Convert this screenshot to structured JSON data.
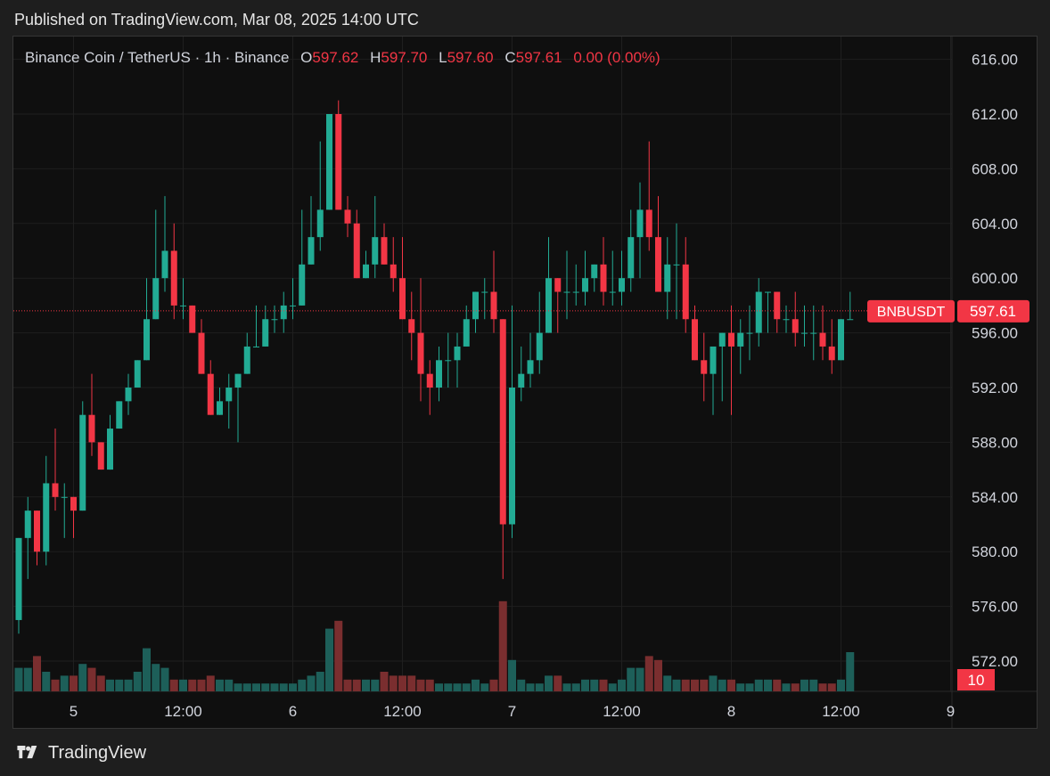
{
  "header": {
    "published": "Published on TradingView.com, Mar 08, 2025 14:00 UTC"
  },
  "legend": {
    "symbol": "Binance Coin / TetherUS · 1h · Binance",
    "o_label": "O",
    "o_value": "597.62",
    "h_label": "H",
    "h_value": "597.70",
    "l_label": "L",
    "l_value": "597.60",
    "c_label": "C",
    "c_value": "597.61",
    "change": "0.00 (0.00%)"
  },
  "price_tag": {
    "symbol": "BNBUSDT",
    "value": "597.61"
  },
  "volume_tag": {
    "value": "10"
  },
  "footer": {
    "brand": "TradingView"
  },
  "colors": {
    "up": "#22ab94",
    "down": "#f23645",
    "vol_up": "#1d5f59",
    "vol_down": "#7a2e2f",
    "background": "#0f0f0f",
    "grid": "#1f1f1f",
    "axis_text": "#d1d4dc"
  },
  "chart_data": {
    "type": "candlestick",
    "ylim": [
      570,
      617
    ],
    "yticks": [
      "616.00",
      "612.00",
      "608.00",
      "604.00",
      "600.00",
      "596.00",
      "592.00",
      "588.00",
      "584.00",
      "580.00",
      "576.00",
      "572.00"
    ],
    "xticks": [
      {
        "label": "5",
        "index": 6
      },
      {
        "label": "12:00",
        "index": 18
      },
      {
        "label": "6",
        "index": 30
      },
      {
        "label": "12:00",
        "index": 42
      },
      {
        "label": "7",
        "index": 54
      },
      {
        "label": "12:00",
        "index": 66
      },
      {
        "label": "8",
        "index": 78
      },
      {
        "label": "12:00",
        "index": 90
      },
      {
        "label": "9",
        "index": 102
      }
    ],
    "last_price": 597.61,
    "candles": [
      [
        575,
        581,
        574,
        581,
        6
      ],
      [
        581,
        584,
        578,
        583,
        6
      ],
      [
        583,
        583,
        579,
        580,
        9
      ],
      [
        580,
        587,
        579,
        585,
        5
      ],
      [
        585,
        589,
        583,
        584,
        3
      ],
      [
        584,
        585,
        581,
        584,
        4
      ],
      [
        584,
        584,
        581,
        583,
        4
      ],
      [
        583,
        591,
        583,
        590,
        7
      ],
      [
        590,
        593,
        587,
        588,
        6
      ],
      [
        588,
        588,
        586,
        586,
        4
      ],
      [
        586,
        590,
        586,
        589,
        3
      ],
      [
        589,
        591,
        589,
        591,
        3
      ],
      [
        591,
        593,
        590,
        592,
        3
      ],
      [
        592,
        594,
        592,
        594,
        5
      ],
      [
        594,
        600,
        594,
        597,
        11
      ],
      [
        597,
        605,
        597,
        600,
        7
      ],
      [
        600,
        606,
        599,
        602,
        6
      ],
      [
        602,
        604,
        597,
        598,
        3
      ],
      [
        598,
        600,
        597,
        598,
        3
      ],
      [
        598,
        598,
        596,
        596,
        3
      ],
      [
        596,
        597,
        593,
        593,
        3
      ],
      [
        593,
        594,
        590,
        590,
        4
      ],
      [
        590,
        592,
        590,
        591,
        3
      ],
      [
        591,
        593,
        589,
        592,
        3
      ],
      [
        592,
        593,
        588,
        593,
        2
      ],
      [
        593,
        596,
        593,
        595,
        2
      ],
      [
        595,
        598,
        595,
        595,
        2
      ],
      [
        595,
        598,
        595,
        597,
        2
      ],
      [
        597,
        598,
        596,
        597,
        2
      ],
      [
        597,
        599,
        596,
        598,
        2
      ],
      [
        598,
        600,
        597,
        598,
        2
      ],
      [
        598,
        605,
        598,
        601,
        3
      ],
      [
        601,
        606,
        601,
        603,
        4
      ],
      [
        603,
        610,
        602,
        605,
        5
      ],
      [
        605,
        612,
        605,
        612,
        16
      ],
      [
        612,
        613,
        605,
        605,
        18
      ],
      [
        605,
        606,
        603,
        604,
        3
      ],
      [
        604,
        605,
        600,
        600,
        3
      ],
      [
        600,
        602,
        600,
        601,
        3
      ],
      [
        601,
        606,
        600,
        603,
        3
      ],
      [
        603,
        604,
        601,
        601,
        5
      ],
      [
        601,
        603,
        599,
        600,
        4
      ],
      [
        600,
        603,
        597,
        597,
        4
      ],
      [
        597,
        599,
        594,
        596,
        4
      ],
      [
        596,
        600,
        591,
        593,
        3
      ],
      [
        593,
        594,
        590,
        592,
        3
      ],
      [
        592,
        595,
        591,
        594,
        2
      ],
      [
        594,
        596,
        592,
        594,
        2
      ],
      [
        594,
        596,
        592,
        595,
        2
      ],
      [
        595,
        598,
        595,
        597,
        2
      ],
      [
        597,
        599,
        596,
        599,
        3
      ],
      [
        599,
        600,
        597,
        599,
        2
      ],
      [
        599,
        602,
        596,
        597,
        3
      ],
      [
        597,
        597,
        578,
        582,
        23
      ],
      [
        582,
        598,
        581,
        592,
        8
      ],
      [
        592,
        595,
        591,
        593,
        3
      ],
      [
        593,
        596,
        592,
        594,
        2
      ],
      [
        594,
        599,
        593,
        596,
        2
      ],
      [
        596,
        603,
        596,
        600,
        4
      ],
      [
        600,
        600,
        596,
        599,
        4
      ],
      [
        599,
        602,
        597,
        599,
        2
      ],
      [
        599,
        601,
        598,
        599,
        2
      ],
      [
        599,
        602,
        598,
        600,
        3
      ],
      [
        600,
        601,
        599,
        601,
        3
      ],
      [
        601,
        603,
        598,
        599,
        3
      ],
      [
        599,
        602,
        598,
        599,
        2
      ],
      [
        599,
        602,
        598,
        600,
        3
      ],
      [
        600,
        605,
        599,
        603,
        6
      ],
      [
        603,
        607,
        600,
        605,
        6
      ],
      [
        605,
        610,
        602,
        603,
        9
      ],
      [
        603,
        606,
        599,
        599,
        8
      ],
      [
        599,
        603,
        597,
        601,
        4
      ],
      [
        601,
        604,
        597,
        601,
        3
      ],
      [
        601,
        603,
        596,
        597,
        3
      ],
      [
        597,
        598,
        594,
        594,
        3
      ],
      [
        594,
        596,
        591,
        593,
        3
      ],
      [
        593,
        595,
        590,
        595,
        4
      ],
      [
        595,
        596,
        591,
        596,
        3
      ],
      [
        596,
        598,
        590,
        595,
        3
      ],
      [
        595,
        597,
        593,
        596,
        2
      ],
      [
        596,
        598,
        594,
        596,
        2
      ],
      [
        596,
        600,
        595,
        599,
        3
      ],
      [
        599,
        599,
        596,
        599,
        3
      ],
      [
        599,
        599,
        596,
        597,
        3
      ],
      [
        597,
        598,
        596,
        597,
        2
      ],
      [
        597,
        599,
        595,
        596,
        2
      ],
      [
        596,
        598,
        595,
        596,
        3
      ],
      [
        596,
        598,
        594,
        596,
        3
      ],
      [
        596,
        598,
        594,
        595,
        2
      ],
      [
        595,
        597,
        593,
        594,
        2
      ],
      [
        594,
        597,
        594,
        597,
        3
      ],
      [
        597,
        599,
        597,
        597,
        10
      ]
    ]
  }
}
